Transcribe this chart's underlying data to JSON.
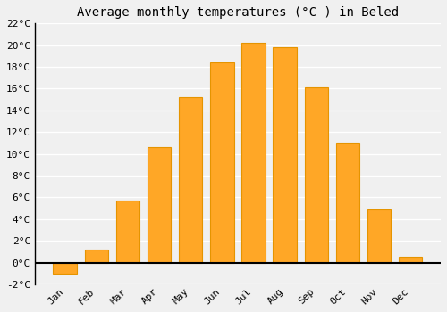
{
  "title": "Average monthly temperatures (°C ) in Beled",
  "months": [
    "Jan",
    "Feb",
    "Mar",
    "Apr",
    "May",
    "Jun",
    "Jul",
    "Aug",
    "Sep",
    "Oct",
    "Nov",
    "Dec"
  ],
  "values": [
    -1.0,
    1.2,
    5.7,
    10.6,
    15.2,
    18.4,
    20.2,
    19.8,
    16.1,
    11.0,
    4.9,
    0.5
  ],
  "bar_color": "#FFA726",
  "bar_edge_color": "#E59400",
  "background_color": "#f0f0f0",
  "grid_color": "#ffffff",
  "ylim": [
    -2,
    22
  ],
  "yticks": [
    -2,
    0,
    2,
    4,
    6,
    8,
    10,
    12,
    14,
    16,
    18,
    20,
    22
  ],
  "title_fontsize": 10,
  "tick_fontsize": 8,
  "bar_width": 0.75
}
